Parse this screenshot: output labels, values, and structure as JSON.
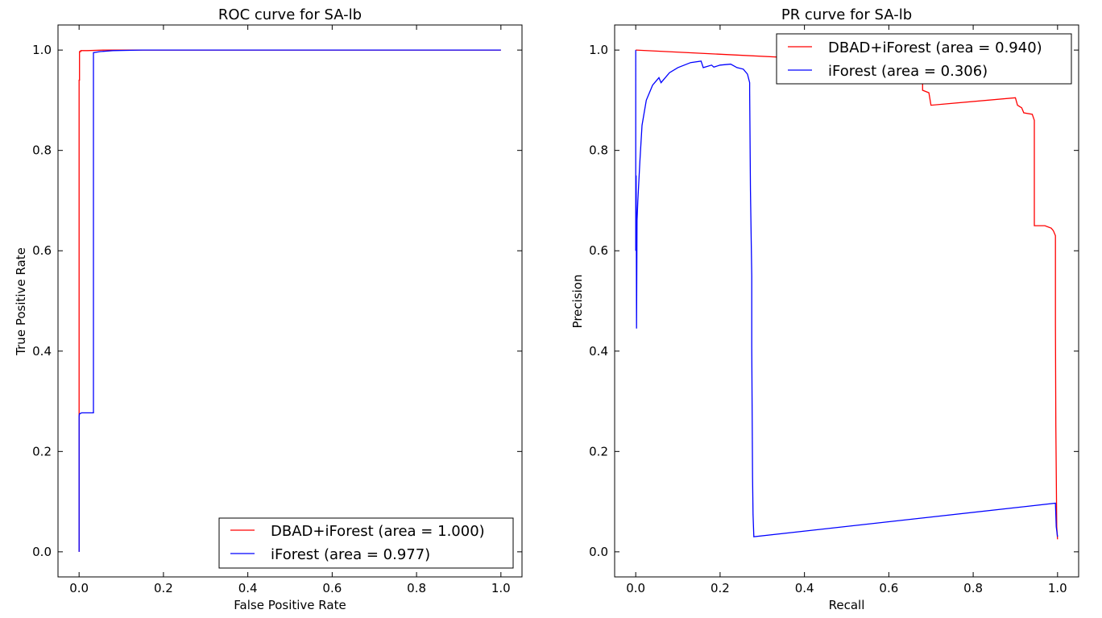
{
  "chart_data": [
    {
      "type": "line",
      "title": "ROC curve for SA-lb",
      "xlabel": "False Positive Rate",
      "ylabel": "True Positive Rate",
      "xlim": [
        -0.05,
        1.05
      ],
      "ylim": [
        -0.05,
        1.05
      ],
      "xticks": [
        "0.0",
        "0.2",
        "0.4",
        "0.6",
        "0.8",
        "1.0"
      ],
      "yticks": [
        "0.0",
        "0.2",
        "0.4",
        "0.6",
        "0.8",
        "1.0"
      ],
      "legend_position": "lower-right",
      "grid": false,
      "series": [
        {
          "name": "DBAD+iForest (area = 1.000)",
          "color": "#ff0000",
          "points": [
            [
              0.0,
              0.0
            ],
            [
              0.0,
              0.3
            ],
            [
              0.0,
              0.68
            ],
            [
              0.0,
              0.94
            ],
            [
              0.001,
              0.94
            ],
            [
              0.001,
              0.997
            ],
            [
              0.004,
              0.997
            ],
            [
              0.004,
              0.999
            ],
            [
              0.02,
              0.999
            ],
            [
              0.06,
              1.0
            ],
            [
              1.0,
              1.0
            ]
          ]
        },
        {
          "name": "iForest (area = 0.977)",
          "color": "#0000ff",
          "points": [
            [
              0.0,
              0.0
            ],
            [
              0.0,
              0.27
            ],
            [
              0.001,
              0.275
            ],
            [
              0.006,
              0.277
            ],
            [
              0.034,
              0.277
            ],
            [
              0.034,
              0.995
            ],
            [
              0.05,
              0.997
            ],
            [
              0.08,
              0.999
            ],
            [
              0.15,
              1.0
            ],
            [
              1.0,
              1.0
            ]
          ]
        }
      ]
    },
    {
      "type": "line",
      "title": "PR curve for SA-lb",
      "xlabel": "Recall",
      "ylabel": "Precision",
      "xlim": [
        -0.05,
        1.05
      ],
      "ylim": [
        -0.05,
        1.05
      ],
      "xticks": [
        "0.0",
        "0.2",
        "0.4",
        "0.6",
        "0.8",
        "1.0"
      ],
      "yticks": [
        "0.0",
        "0.2",
        "0.4",
        "0.6",
        "0.8",
        "1.0"
      ],
      "legend_position": "upper-right",
      "grid": false,
      "series": [
        {
          "name": "DBAD+iForest (area = 0.940)",
          "color": "#ff0000",
          "points": [
            [
              0.0,
              1.0
            ],
            [
              0.6,
              0.975
            ],
            [
              0.65,
              0.96
            ],
            [
              0.68,
              0.94
            ],
            [
              0.68,
              0.92
            ],
            [
              0.695,
              0.915
            ],
            [
              0.7,
              0.89
            ],
            [
              0.9,
              0.905
            ],
            [
              0.905,
              0.89
            ],
            [
              0.915,
              0.885
            ],
            [
              0.92,
              0.875
            ],
            [
              0.94,
              0.872
            ],
            [
              0.945,
              0.86
            ],
            [
              0.945,
              0.65
            ],
            [
              0.97,
              0.65
            ],
            [
              0.985,
              0.645
            ],
            [
              0.99,
              0.64
            ],
            [
              0.995,
              0.63
            ],
            [
              0.995,
              0.455
            ],
            [
              0.996,
              0.25
            ],
            [
              0.997,
              0.16
            ],
            [
              0.998,
              0.05
            ],
            [
              1.0,
              0.025
            ]
          ]
        },
        {
          "name": "iForest (area = 0.306)",
          "color": "#0000ff",
          "points": [
            [
              0.0,
              1.0
            ],
            [
              0.0,
              0.6
            ],
            [
              0.001,
              0.75
            ],
            [
              0.002,
              0.445
            ],
            [
              0.003,
              0.66
            ],
            [
              0.005,
              0.7
            ],
            [
              0.01,
              0.78
            ],
            [
              0.015,
              0.85
            ],
            [
              0.025,
              0.9
            ],
            [
              0.04,
              0.93
            ],
            [
              0.055,
              0.945
            ],
            [
              0.06,
              0.935
            ],
            [
              0.08,
              0.955
            ],
            [
              0.1,
              0.965
            ],
            [
              0.13,
              0.975
            ],
            [
              0.155,
              0.978
            ],
            [
              0.16,
              0.965
            ],
            [
              0.18,
              0.97
            ],
            [
              0.185,
              0.966
            ],
            [
              0.2,
              0.97
            ],
            [
              0.225,
              0.972
            ],
            [
              0.24,
              0.965
            ],
            [
              0.255,
              0.962
            ],
            [
              0.265,
              0.952
            ],
            [
              0.27,
              0.935
            ],
            [
              0.27,
              0.92
            ],
            [
              0.272,
              0.72
            ],
            [
              0.275,
              0.55
            ],
            [
              0.275,
              0.41
            ],
            [
              0.277,
              0.15
            ],
            [
              0.278,
              0.075
            ],
            [
              0.28,
              0.03
            ],
            [
              0.995,
              0.097
            ],
            [
              0.997,
              0.05
            ],
            [
              1.0,
              0.03
            ]
          ]
        }
      ]
    }
  ]
}
